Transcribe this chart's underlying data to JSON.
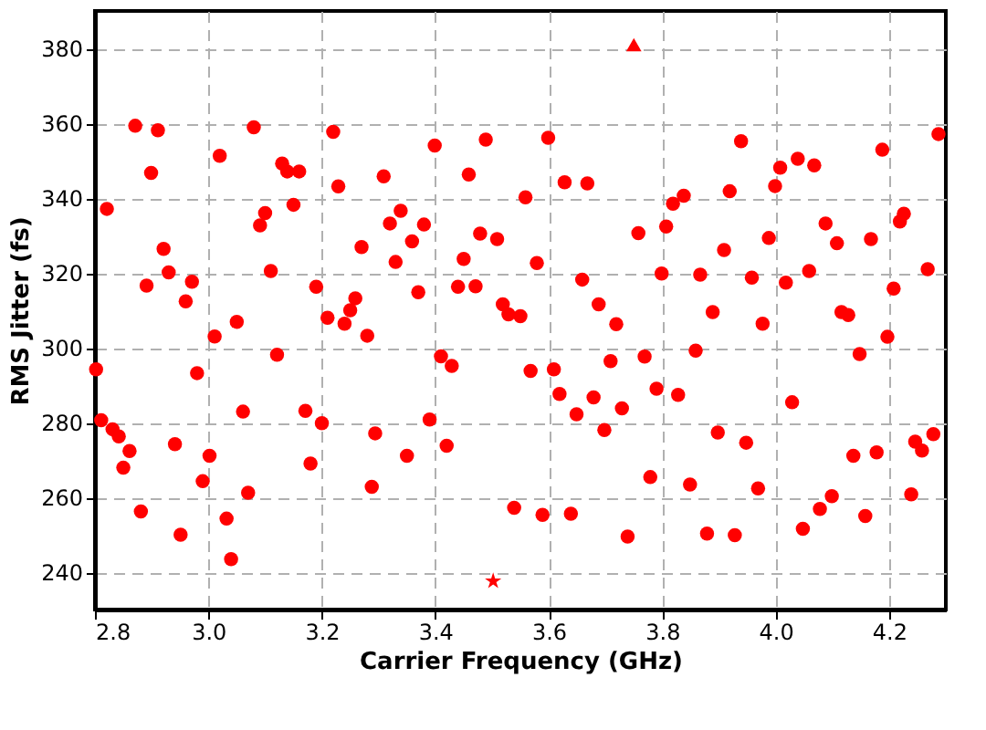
{
  "chart_data": {
    "type": "scatter",
    "xlabel": "Carrier Frequency (GHz)",
    "ylabel": "RMS Jitter (fs)",
    "xlim": [
      2.8,
      4.3
    ],
    "xticks": [
      2.8,
      {
        "value": 3,
        "label": "3.0"
      },
      3.2,
      3.4,
      3.6,
      3.8,
      {
        "value": 4,
        "label": "4.0"
      },
      4.2
    ],
    "ylim": [
      230,
      390
    ],
    "yticks": [
      240,
      260,
      280,
      300,
      320,
      340,
      360,
      380
    ],
    "grid": true,
    "series": [
      {
        "color": "#ff0000",
        "marker": "circle",
        "x": [
          2.821,
          2.871,
          2.911,
          2.899,
          2.921,
          2.93,
          2.891,
          2.971,
          2.96,
          3.02,
          3.08,
          3.05,
          3.13,
          3.139,
          3.16,
          3.229,
          3.22,
          3.15,
          3.1,
          3.091,
          3.27,
          3.11,
          3.19,
          3.259,
          3.25,
          3.21,
          3.24,
          3.399,
          3.489,
          3.599,
          3.309,
          3.459,
          3.628,
          3.668,
          3.559,
          3.339,
          3.32,
          3.38,
          3.359,
          3.479,
          3.509,
          3.758,
          3.33,
          3.45,
          3.579,
          3.659,
          3.799,
          3.37,
          3.44,
          3.471,
          3.519,
          3.529,
          3.55,
          3.688,
          3.719,
          4.287,
          4.188,
          3.939,
          4.008,
          4.039,
          4.068,
          3.999,
          3.919,
          3.819,
          3.838,
          3.807,
          4.088,
          4.108,
          4.168,
          4.219,
          4.226,
          3.988,
          3.909,
          3.867,
          3.958,
          4.018,
          4.059,
          4.268,
          4.208,
          3.889,
          3.977,
          4.116,
          4.128,
          3.28,
          3.011,
          3.121,
          2.802,
          2.98,
          3.061,
          3.171,
          3.2,
          2.811,
          2.831,
          2.842,
          2.861,
          2.85,
          2.941,
          3.002,
          3.18,
          2.99,
          3.07,
          2.881,
          3.032,
          2.951,
          3.04,
          3.294,
          3.288,
          3.41,
          3.429,
          3.568,
          3.609,
          3.709,
          3.769,
          3.79,
          3.619,
          3.679,
          3.729,
          3.649,
          3.698,
          3.39,
          3.42,
          3.35,
          3.779,
          3.539,
          3.589,
          3.639,
          3.739,
          3.859,
          4.197,
          4.148,
          3.828,
          4.029,
          3.898,
          3.948,
          3.849,
          3.969,
          4.137,
          4.178,
          4.246,
          4.258,
          4.278,
          4.239,
          4.099,
          4.078,
          4.158,
          3.879,
          3.928,
          4.048
        ],
        "values": [
          337.1,
          359.3,
          358.1,
          346.7,
          326.4,
          320.1,
          316.6,
          317.6,
          312.4,
          351.3,
          358.9,
          306.9,
          349.2,
          347.1,
          347.1,
          343.1,
          357.7,
          338.2,
          336.0,
          332.7,
          326.9,
          320.5,
          316.3,
          313.2,
          310.0,
          308.0,
          306.4,
          354.0,
          355.6,
          356.1,
          345.8,
          346.3,
          344.2,
          343.9,
          340.2,
          336.6,
          333.2,
          332.9,
          328.4,
          330.5,
          329.0,
          330.6,
          322.9,
          323.7,
          322.6,
          318.2,
          319.8,
          314.8,
          316.3,
          316.4,
          311.6,
          308.9,
          308.4,
          311.6,
          306.3,
          357.1,
          352.9,
          355.2,
          348.1,
          350.5,
          348.7,
          343.2,
          341.8,
          338.5,
          340.6,
          332.4,
          333.2,
          327.9,
          329.0,
          333.7,
          335.8,
          329.3,
          326.1,
          319.5,
          318.7,
          317.4,
          320.5,
          321.0,
          315.8,
          309.5,
          306.4,
          309.5,
          308.7,
          303.2,
          303.0,
          298.1,
          294.2,
          293.2,
          282.9,
          283.1,
          279.8,
          280.6,
          278.2,
          276.3,
          272.4,
          267.9,
          274.2,
          271.1,
          269.0,
          264.3,
          261.2,
          256.2,
          254.3,
          250.0,
          243.5,
          277.1,
          262.8,
          297.7,
          295.1,
          293.8,
          294.2,
          296.4,
          297.6,
          289.0,
          287.6,
          286.7,
          283.8,
          282.2,
          278.0,
          280.8,
          273.8,
          271.1,
          265.4,
          257.2,
          255.3,
          255.6,
          249.5,
          299.2,
          302.9,
          298.3,
          287.4,
          285.4,
          277.3,
          274.6,
          263.4,
          262.4,
          271.1,
          272.0,
          274.9,
          272.5,
          276.9,
          260.8,
          260.3,
          256.9,
          255.0,
          250.3,
          249.9,
          251.6
        ]
      },
      {
        "color": "#ff0000",
        "marker": "triangle",
        "x": [
          3.75
        ],
        "values": [
          381
        ]
      },
      {
        "color": "#ff0000",
        "marker": "star",
        "x": [
          3.502
        ],
        "values": [
          237.6
        ]
      }
    ]
  }
}
